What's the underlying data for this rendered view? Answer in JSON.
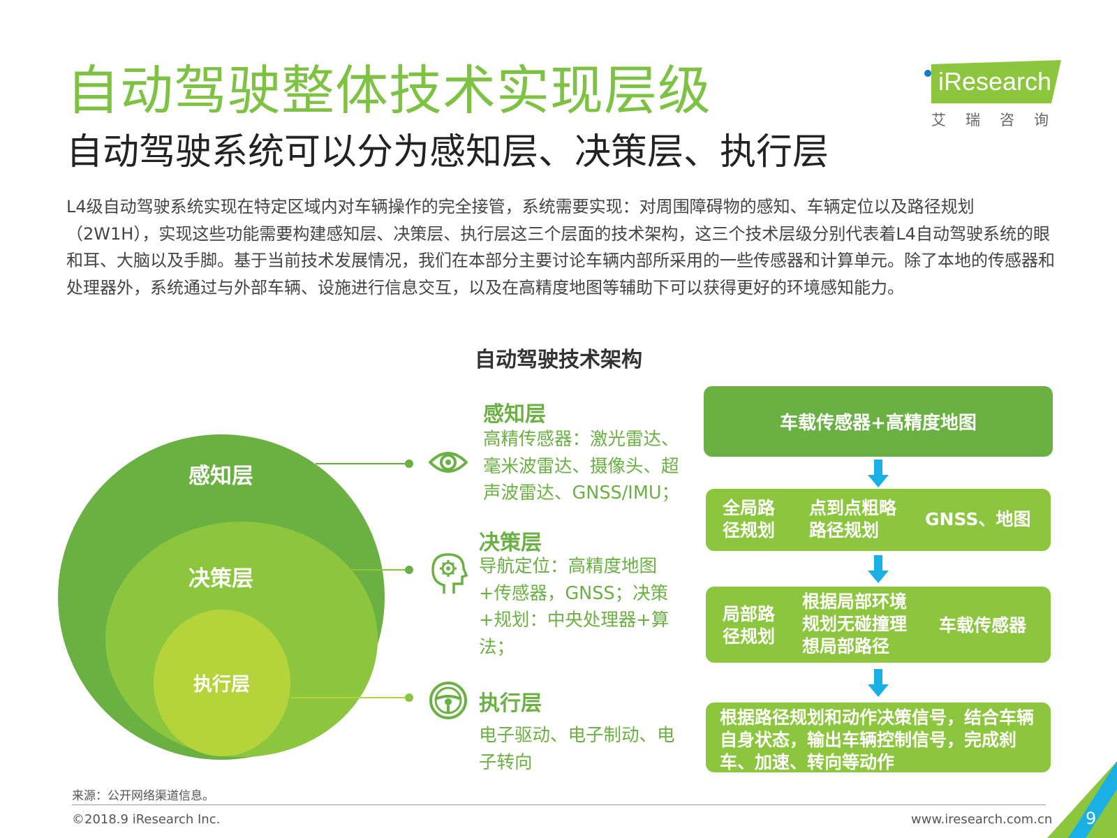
{
  "header": {
    "title": "自动驾驶整体技术实现层级",
    "subtitle": "自动驾驶系统可以分为感知层、决策层、执行层"
  },
  "logo": {
    "brand": "iResearch",
    "brand_cn": "艾瑞咨询",
    "colors": {
      "banner": "#8cc63f",
      "dot": "#0a7cc9"
    }
  },
  "intro": "L4级自动驾驶系统实现在特定区域内对车辆操作的完全接管，系统需要实现：对周围障碍物的感知、车辆定位以及路径规划（2W1H），实现这些功能需要构建感知层、决策层、执行层这三个层面的技术架构，这三个技术层级分别代表着L4自动驾驶系统的眼和耳、大脑以及手脚。基于当前技术发展情况，我们在本部分主要讨论车辆内部所采用的一些传感器和计算单元。除了本地的传感器和处理器外，系统通过与外部车辆、设施进行信息交互，以及在高精度地图等辅助下可以获得更好的环境感知能力。",
  "diagram": {
    "title": "自动驾驶技术架构",
    "circles": {
      "outer": "感知层",
      "middle": "决策层",
      "inner": "执行层"
    },
    "layers": [
      {
        "heading": "感知层",
        "icon": "eye-icon",
        "desc": "高精传感器：激光雷达、毫米波雷达、摄像头、超声波雷达、GNSS/IMU；"
      },
      {
        "heading": "决策层",
        "icon": "head-gear-icon",
        "desc": "导航定位：高精度地图+传感器，GNSS；决策+规划：中央处理器+算法；"
      },
      {
        "heading": "执行层",
        "icon": "steering-wheel-icon",
        "desc": "电子驱动、电子制动、电子转向"
      }
    ],
    "flow": {
      "box1": "车载传感器+高精度地图",
      "box2": {
        "left": "全局路径规划",
        "middle": "点到点粗略路径规划",
        "right": "GNSS、地图"
      },
      "box3": {
        "left": "局部路径规划",
        "middle": "根据局部环境规划无碰撞理想局部路径",
        "right": "车载传感器"
      },
      "box4": "根据路径规划和动作决策信号，结合车辆自身状态，输出车辆控制信号，完成刹车、加速、转向等动作"
    },
    "colors": {
      "outer": "#6ab043",
      "middle": "#8cc63f",
      "inner": "#b5d33a",
      "arrow": "#1ab0e6"
    }
  },
  "footer": {
    "source": "来源：公开网络渠道信息。",
    "copyright": "©2018.9 iResearch Inc.",
    "website": "www.iresearch.com.cn",
    "page": "9"
  }
}
